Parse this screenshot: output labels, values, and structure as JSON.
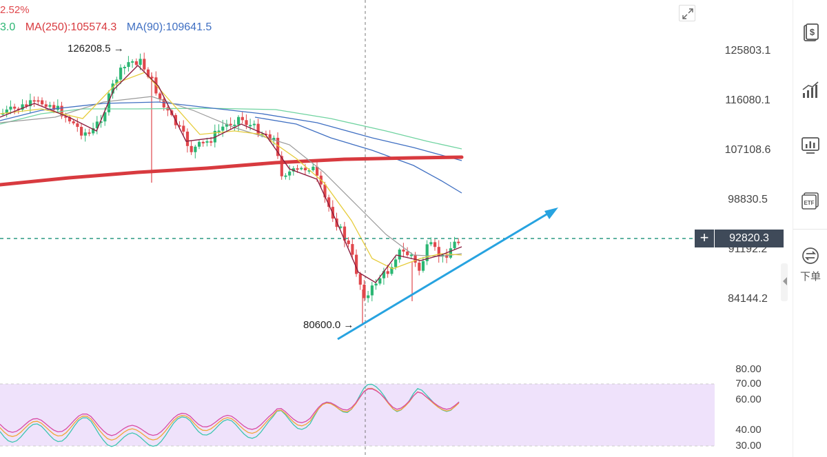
{
  "header": {
    "change_percent": "2.52%",
    "ma_legend": [
      {
        "label": "3.0",
        "color": "#2bb673"
      },
      {
        "label": "MA(250):105574.3",
        "color": "#d83a3f"
      },
      {
        "label": "MA(90):109641.5",
        "color": "#3f6fc2"
      }
    ]
  },
  "chart_data": {
    "type": "line",
    "price_axis_ticks": [
      "125803.1",
      "116080.1",
      "107108.6",
      "98830.5",
      "91192.2",
      "84144.2"
    ],
    "indicator_axis_ticks": [
      "80.00",
      "70.00",
      "60.00",
      "40.00",
      "30.00"
    ],
    "current_price": "92820.3",
    "annotations": {
      "high": "126208.5",
      "low": "80600.0"
    },
    "colors": {
      "up": "#2bb673",
      "down": "#e0474c",
      "ma250": "#d83a3f",
      "ma90": "#3f6fc2",
      "trend_arrow": "#27a3e0",
      "rsi_band": "#efe2fb"
    },
    "grid": false
  },
  "sidebar": {
    "items": [
      {
        "icon": "dollar-doc-icon"
      },
      {
        "icon": "bar-chart-icon"
      },
      {
        "icon": "indicator-board-icon"
      },
      {
        "icon": "etf-icon"
      },
      {
        "icon": "exchange-icon",
        "label": "下单"
      }
    ]
  }
}
